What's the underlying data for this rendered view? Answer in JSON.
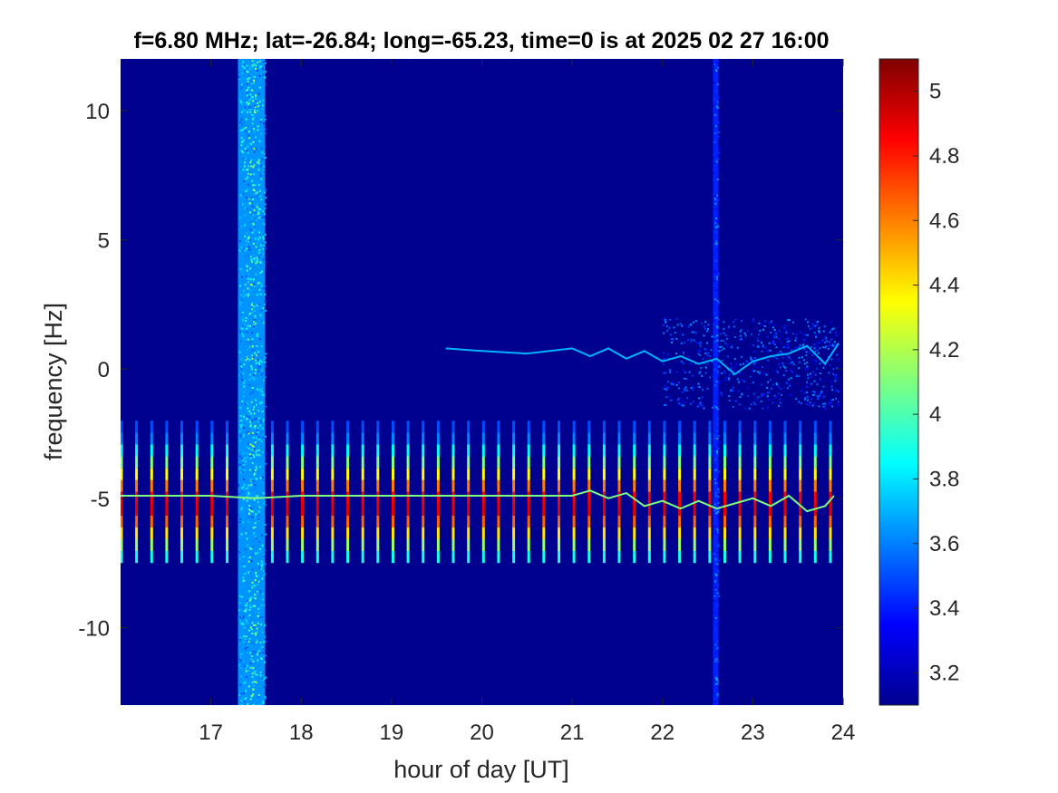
{
  "chart_data": {
    "type": "heatmap",
    "title": "f=6.80 MHz;  lat=-26.84; long=-65.23, time=0 is at 2025 02 27 16:00",
    "xlabel": "hour of day [UT]",
    "ylabel": "frequency [Hz]",
    "xlim": [
      16,
      24
    ],
    "ylim": [
      -13,
      12
    ],
    "xticks": [
      17,
      18,
      19,
      20,
      21,
      22,
      23,
      24
    ],
    "yticks": [
      -10,
      -5,
      0,
      5,
      10
    ],
    "xtick_labels": [
      "17",
      "18",
      "19",
      "20",
      "21",
      "22",
      "23",
      "24"
    ],
    "ytick_labels": [
      "-10",
      "-5",
      "0",
      "5",
      "10"
    ],
    "colormap": "jet",
    "background_color": "#00008F",
    "colorbar": {
      "clim": [
        3.1,
        5.1
      ],
      "ticks": [
        3.2,
        3.4,
        3.6,
        3.8,
        4,
        4.2,
        4.4,
        4.6,
        4.8,
        5
      ],
      "tick_labels": [
        "3.2",
        "3.4",
        "3.6",
        "3.8",
        "4",
        "4.2",
        "4.4",
        "4.6",
        "4.8",
        "5"
      ]
    },
    "broadband_bands": [
      {
        "x_start": 17.3,
        "x_end": 17.6,
        "peak_value": 4.3
      },
      {
        "x_start": 22.56,
        "x_end": 22.62,
        "peak_value": 3.8
      }
    ],
    "periodic_pulses": {
      "x_start": 16.0,
      "x_end": 23.9,
      "period_hours": 0.167,
      "y_range": [
        -7.5,
        -2.0
      ],
      "peak_value": 5.0
    },
    "traces": [
      {
        "name": "",
        "x": [
          16.0,
          16.5,
          17.0,
          17.5,
          18.0,
          18.5,
          19.0,
          19.5,
          20.0,
          20.5,
          21.0,
          21.2,
          21.4,
          21.6,
          21.8,
          22.0,
          22.2,
          22.4,
          22.6,
          22.8,
          23.0,
          23.2,
          23.4,
          23.6,
          23.8,
          23.9
        ],
        "y": [
          -4.9,
          -4.9,
          -4.9,
          -5.0,
          -4.9,
          -4.9,
          -4.9,
          -4.9,
          -4.9,
          -4.9,
          -4.9,
          -4.7,
          -5.0,
          -4.8,
          -5.3,
          -5.1,
          -5.4,
          -5.1,
          -5.4,
          -5.2,
          -5.0,
          -5.3,
          -4.9,
          -5.5,
          -5.3,
          -4.9
        ],
        "value": 4.1
      },
      {
        "name": "",
        "x": [
          19.6,
          20.0,
          20.5,
          21.0,
          21.2,
          21.4,
          21.6,
          21.8,
          22.0,
          22.2,
          22.4,
          22.6,
          22.8,
          23.0,
          23.2,
          23.4,
          23.6,
          23.8,
          23.95
        ],
        "y": [
          0.8,
          0.7,
          0.6,
          0.8,
          0.5,
          0.8,
          0.4,
          0.7,
          0.3,
          0.5,
          0.2,
          0.4,
          -0.2,
          0.3,
          0.5,
          0.6,
          0.9,
          0.2,
          1.0
        ],
        "value": 3.7
      }
    ],
    "diffuse_regions": [
      {
        "x_range": [
          22.0,
          23.95
        ],
        "y_range": [
          -1.5,
          2.0
        ],
        "value": 3.6
      }
    ]
  }
}
